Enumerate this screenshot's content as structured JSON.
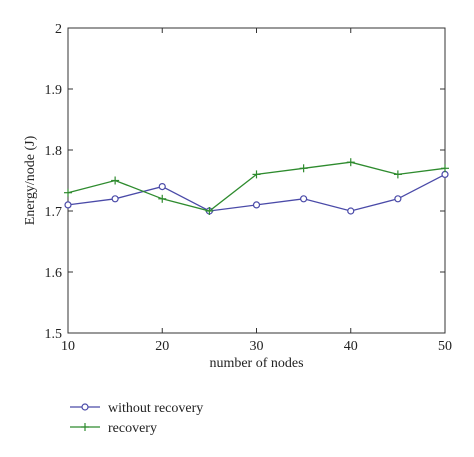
{
  "chart_data": {
    "type": "line",
    "xlabel": "number of nodes",
    "ylabel": "Energy/node (J)",
    "xlim": [
      10,
      50
    ],
    "ylim": [
      1.5,
      2.0
    ],
    "xticks": [
      "10",
      "20",
      "30",
      "40",
      "50"
    ],
    "yticks": [
      "1.5",
      "1.6",
      "1.7",
      "1.8",
      "1.9",
      "2"
    ],
    "x": [
      10,
      15,
      20,
      25,
      30,
      35,
      40,
      45,
      50
    ],
    "series": [
      {
        "name": "without recovery",
        "values": [
          1.71,
          1.72,
          1.74,
          1.7,
          1.71,
          1.72,
          1.7,
          1.72,
          1.76
        ],
        "color": "#4a4aa8",
        "marker": "circle"
      },
      {
        "name": "recovery",
        "values": [
          1.73,
          1.75,
          1.72,
          1.7,
          1.76,
          1.77,
          1.78,
          1.76,
          1.77
        ],
        "color": "#2e8b2e",
        "marker": "plus"
      }
    ],
    "grid": false,
    "legend_position": "bottom-left"
  }
}
